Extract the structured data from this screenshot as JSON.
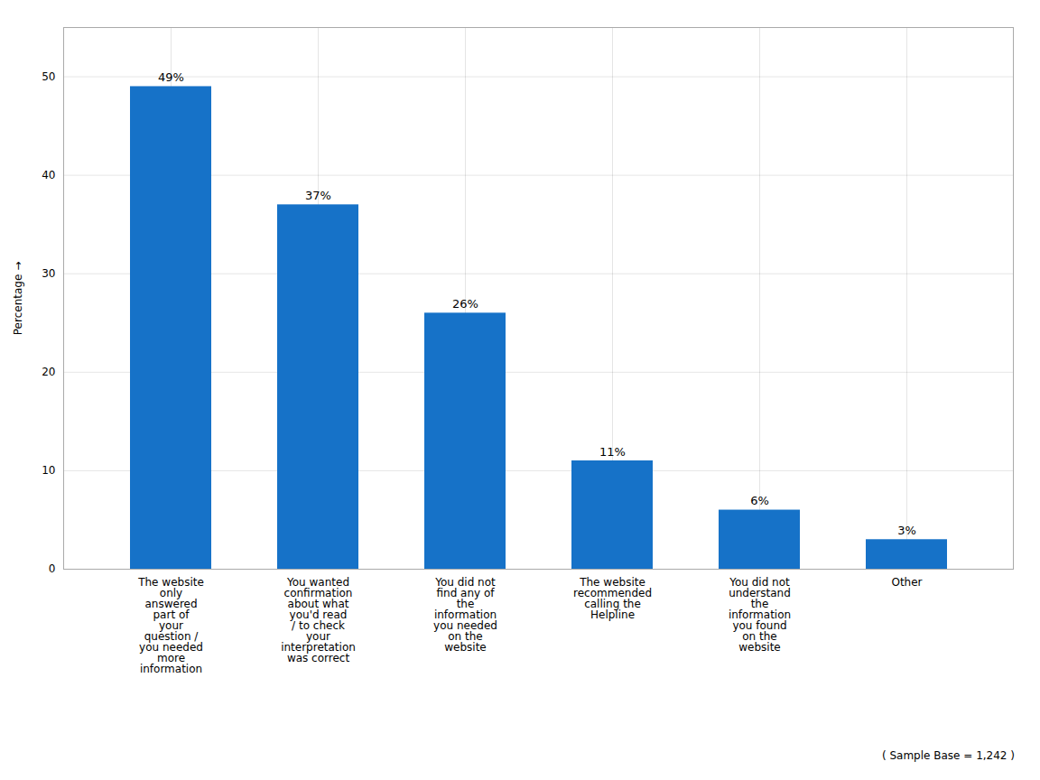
{
  "chart_data": {
    "type": "bar",
    "categories": [
      "The website\nonly\nanswered\npart of\nyour\nquestion /\nyou needed\nmore\ninformation",
      "You wanted\nconfirmation\nabout what\nyou'd read\n/ to check\nyour\ninterpretation\nwas correct",
      "You did not\nfind any of\nthe\ninformation\nyou needed\non the\nwebsite",
      "The website\nrecommended\ncalling the\nHelpline",
      "You did not\nunderstand\nthe\ninformation\nyou found\non the\nwebsite",
      "Other"
    ],
    "values": [
      49,
      37,
      26,
      11,
      6,
      3
    ],
    "value_labels": [
      "49%",
      "37%",
      "26%",
      "11%",
      "6%",
      "3%"
    ],
    "data_labels": true,
    "color": "#1672C8",
    "ylabel": "Percentage",
    "ylim": [
      0,
      55
    ],
    "yticks": [
      0,
      10,
      20,
      30,
      40,
      50
    ],
    "grid": true,
    "annotations": [
      "( Sample Base = 1,242 )"
    ]
  }
}
